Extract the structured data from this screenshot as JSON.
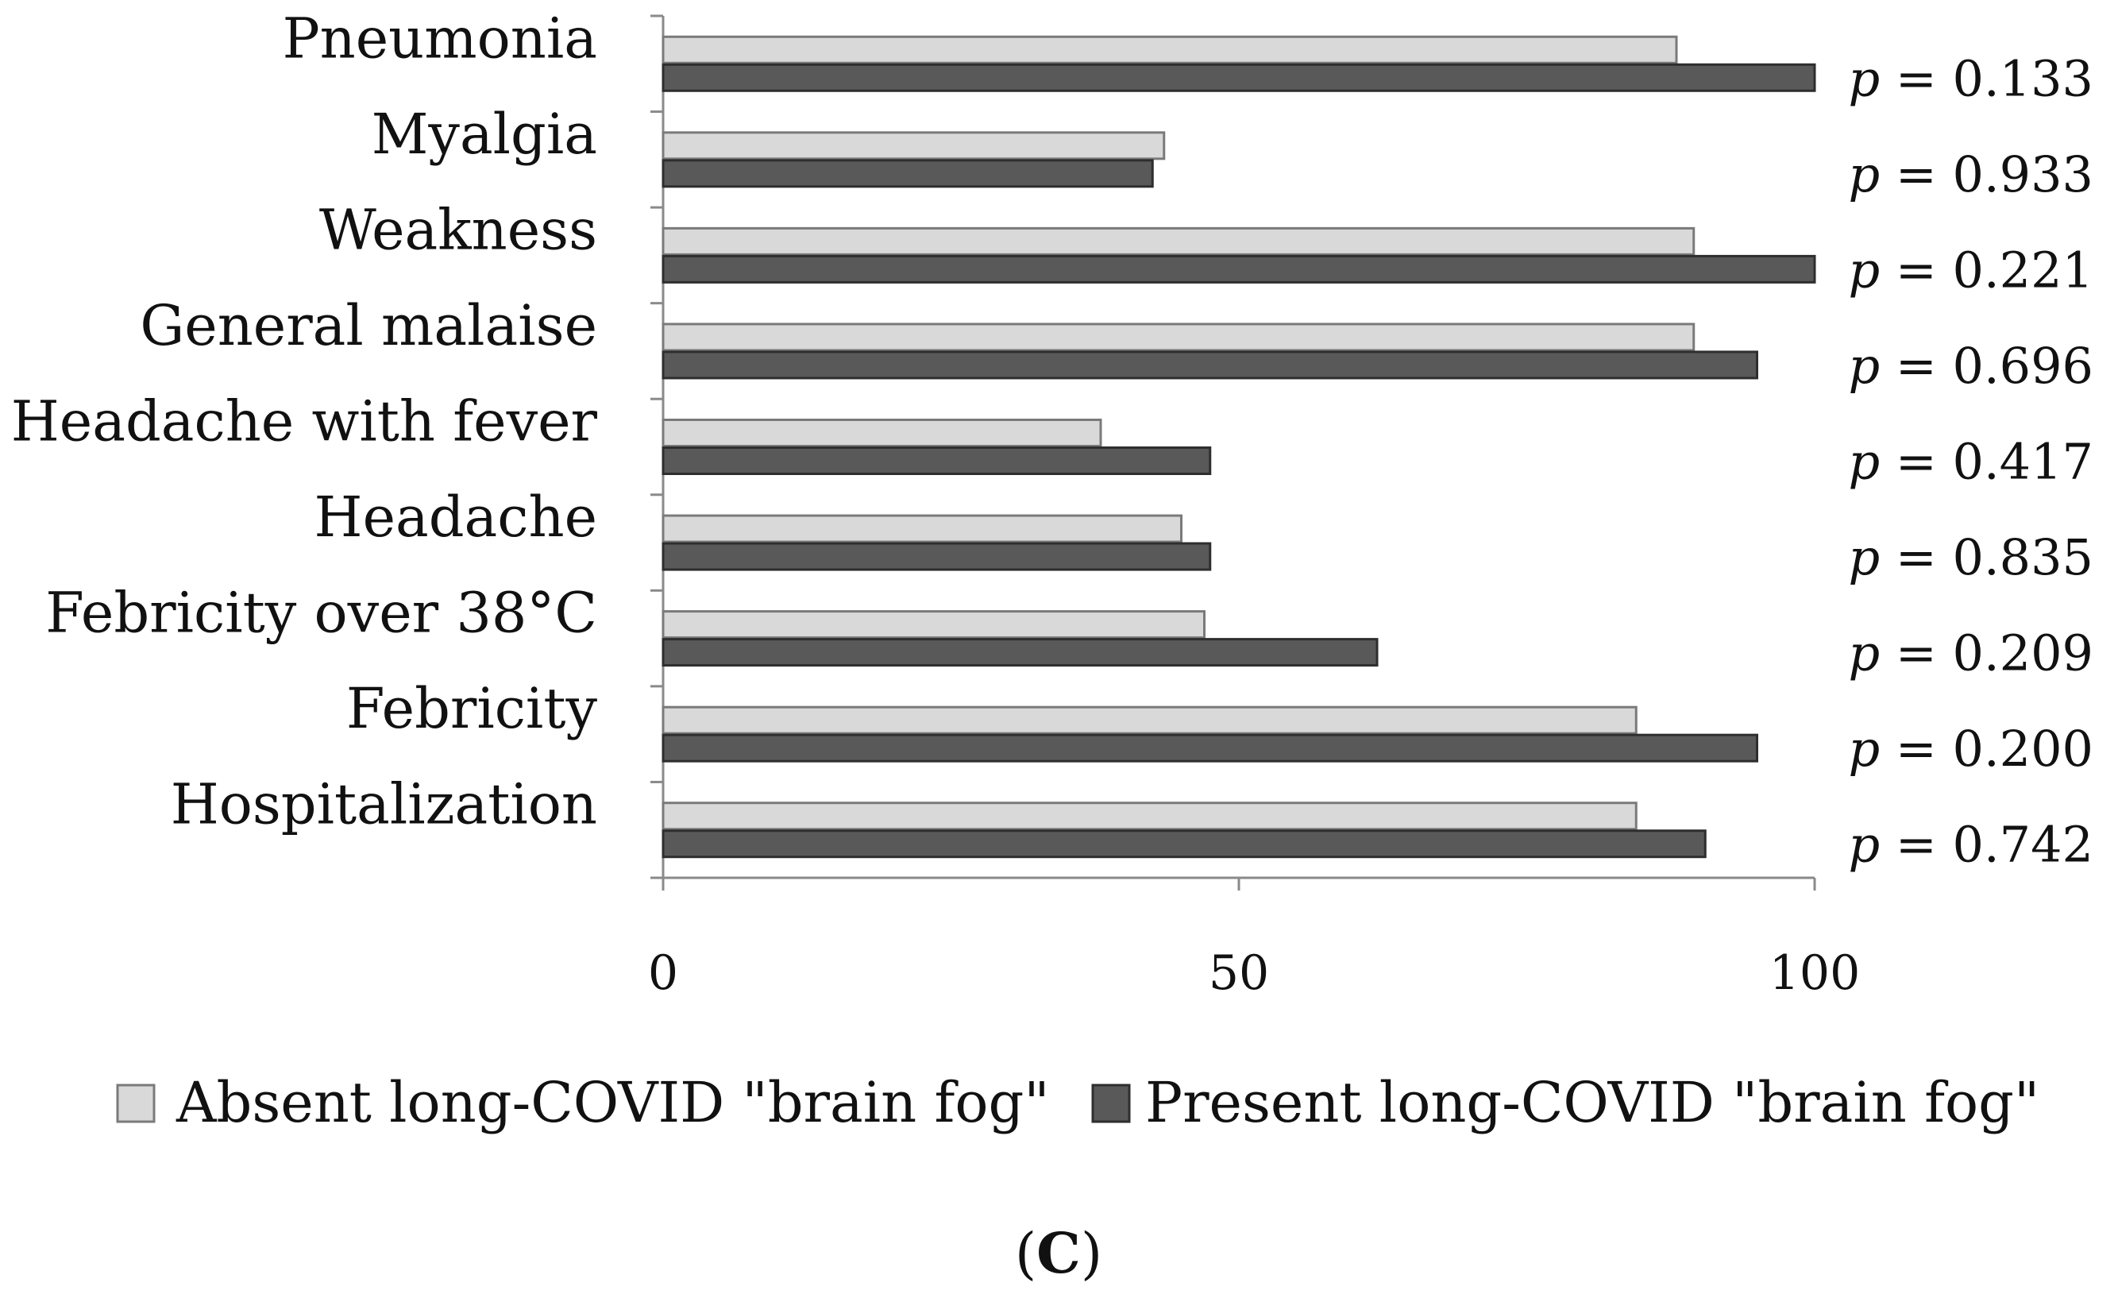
{
  "chart_data": {
    "type": "bar",
    "orientation": "horizontal",
    "categories": [
      "Pneumonia",
      "Myalgia",
      "Weakness",
      "General malaise",
      "Headache with fever",
      "Headache",
      "Febricity over 38°C",
      "Febricity",
      "Hospitalization"
    ],
    "series": [
      {
        "name": "Absent long-COVID \"brain fog\"",
        "color": "#d9d9d9",
        "values": [
          88,
          43.5,
          89.5,
          89.5,
          38,
          45,
          47,
          84.5,
          84.5
        ]
      },
      {
        "name": "Present long-COVID \"brain fog\"",
        "color": "#595959",
        "values": [
          100,
          42.5,
          100,
          95,
          47.5,
          47.5,
          62,
          95,
          90.5
        ]
      }
    ],
    "p_values": [
      "0.133",
      "0.933",
      "0.221",
      "0.696",
      "0.417",
      "0.835",
      "0.209",
      "0.200",
      "0.742"
    ],
    "p_symbol": "p",
    "p_operator": "=",
    "xlim": [
      0,
      100
    ],
    "xticks": [
      0,
      50,
      100
    ],
    "grid": false,
    "legend_position": "bottom",
    "panel_label": "C"
  }
}
